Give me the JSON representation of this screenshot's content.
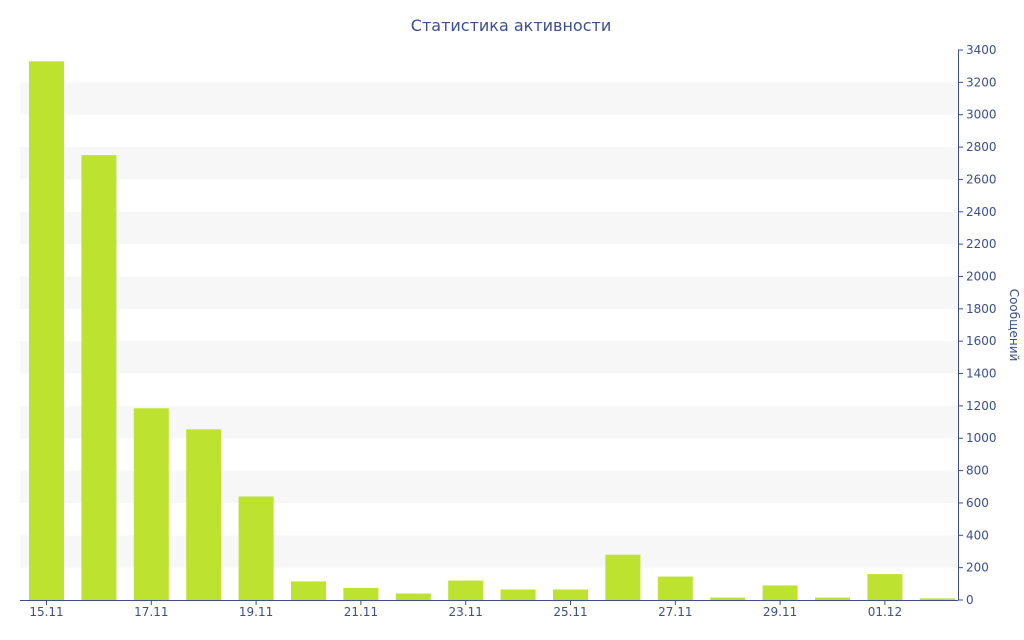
{
  "colors": {
    "bar": "#bde22f",
    "text": "#3a4f8c",
    "band": "#f7f7f7",
    "axis": "#3a4f8c"
  },
  "chart_data": {
    "type": "bar",
    "title": "Статистика активности",
    "ylabel": "Сообщений",
    "xlabel": "",
    "y_axis_side": "right",
    "grid": "alternating horizontal bands",
    "ylim": [
      0,
      3400
    ],
    "yticks": [
      0,
      200,
      400,
      600,
      800,
      1000,
      1200,
      1400,
      1600,
      1800,
      2000,
      2200,
      2400,
      2600,
      2800,
      3000,
      3200,
      3400
    ],
    "categories": [
      "15.11",
      "16.11",
      "17.11",
      "18.11",
      "19.11",
      "20.11",
      "21.11",
      "22.11",
      "23.11",
      "24.11",
      "25.11",
      "26.11",
      "27.11",
      "28.11",
      "29.11",
      "30.11",
      "01.12",
      "02.12"
    ],
    "tick_labels_shown": [
      "15.11",
      "17.11",
      "19.11",
      "21.11",
      "23.11",
      "25.11",
      "27.11",
      "29.11",
      "01.12"
    ],
    "values": [
      3330,
      2750,
      1185,
      1055,
      640,
      115,
      75,
      40,
      120,
      65,
      65,
      280,
      145,
      15,
      90,
      15,
      160,
      10
    ]
  }
}
